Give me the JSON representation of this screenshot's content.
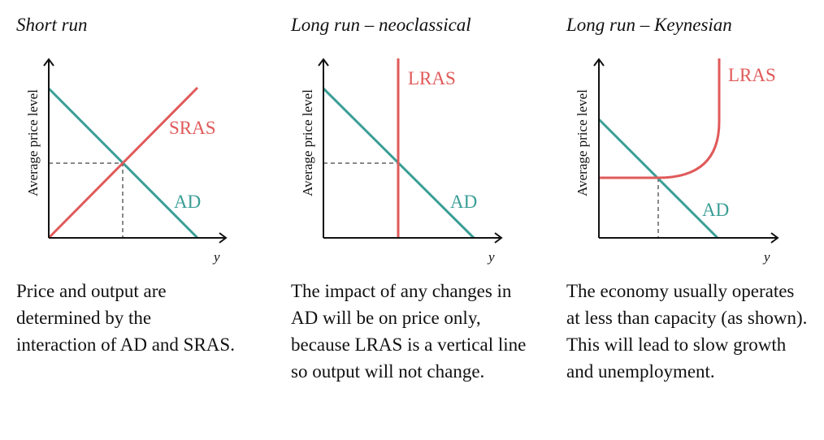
{
  "colors": {
    "supply": "#e05a5a",
    "demand": "#3a9e96"
  },
  "panels": [
    {
      "title": "Short run",
      "ylabel": "Average price level",
      "xlabel": "y",
      "supply_label": "SRAS",
      "demand_label": "AD",
      "description": "Price and output are determined by the interaction of AD and SRAS."
    },
    {
      "title": "Long run – neoclassical",
      "ylabel": "Average price level",
      "xlabel": "y",
      "supply_label": "LRAS",
      "demand_label": "AD",
      "description": "The impact of any changes in AD will be on price only, because LRAS is a vertical line so output will not change."
    },
    {
      "title": "Long run – Keynesian",
      "ylabel": "Average price level",
      "xlabel": "y",
      "supply_label": "LRAS",
      "demand_label": "AD",
      "description": "The economy usually operates at less than capacity (as shown).  This will lead to slow growth and unemployment."
    }
  ]
}
